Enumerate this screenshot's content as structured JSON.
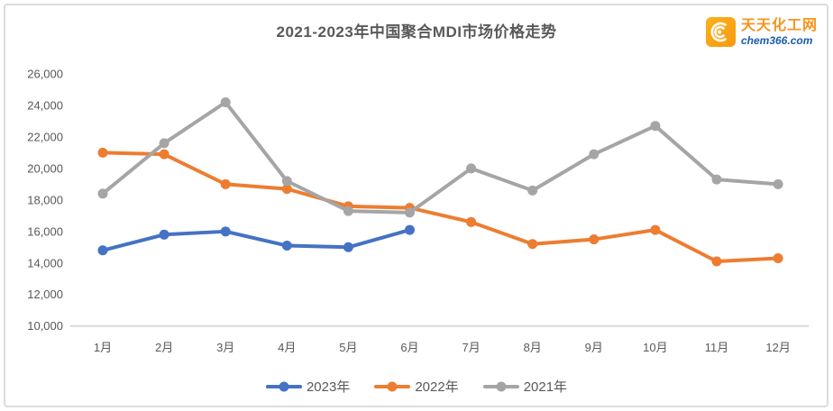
{
  "header": {
    "logo": {
      "site_name": "天天化工网",
      "site_domain": "chem366.com",
      "icon": "shell-arcs-icon",
      "icon_bg_color": "#F79A10",
      "name_color": "#F7941E",
      "domain_color": "#1B5CAB"
    }
  },
  "chart_data": {
    "type": "line",
    "title": "2021-2023年中国聚合MDI市场价格走势",
    "categories": [
      "1月",
      "2月",
      "3月",
      "4月",
      "5月",
      "6月",
      "7月",
      "8月",
      "9月",
      "10月",
      "11月",
      "12月"
    ],
    "series": [
      {
        "name": "2023年",
        "color": "#4472C4",
        "values": [
          14800,
          15800,
          16000,
          15100,
          15000,
          16100
        ]
      },
      {
        "name": "2022年",
        "color": "#ED7D31",
        "values": [
          21000,
          20900,
          19000,
          18700,
          17600,
          17500,
          16600,
          15200,
          15500,
          16100,
          14100,
          14300
        ]
      },
      {
        "name": "2021年",
        "color": "#A5A5A5",
        "values": [
          18400,
          21600,
          24200,
          19200,
          17300,
          17200,
          20000,
          18600,
          20900,
          22700,
          19300,
          19000
        ]
      }
    ],
    "y_axis": {
      "min": 10000,
      "max": 26000,
      "step": 2000,
      "tick_labels": [
        "26,000",
        "24,000",
        "22,000",
        "20,000",
        "18,000",
        "16,000",
        "14,000",
        "12,000",
        "10,000"
      ]
    },
    "legend": {
      "position": "bottom",
      "entries": [
        "2023年",
        "2022年",
        "2021年"
      ]
    },
    "grid": "none",
    "axis_line_color": "#D9D9D9",
    "label_color": "#595959",
    "title_color": "#595959"
  }
}
